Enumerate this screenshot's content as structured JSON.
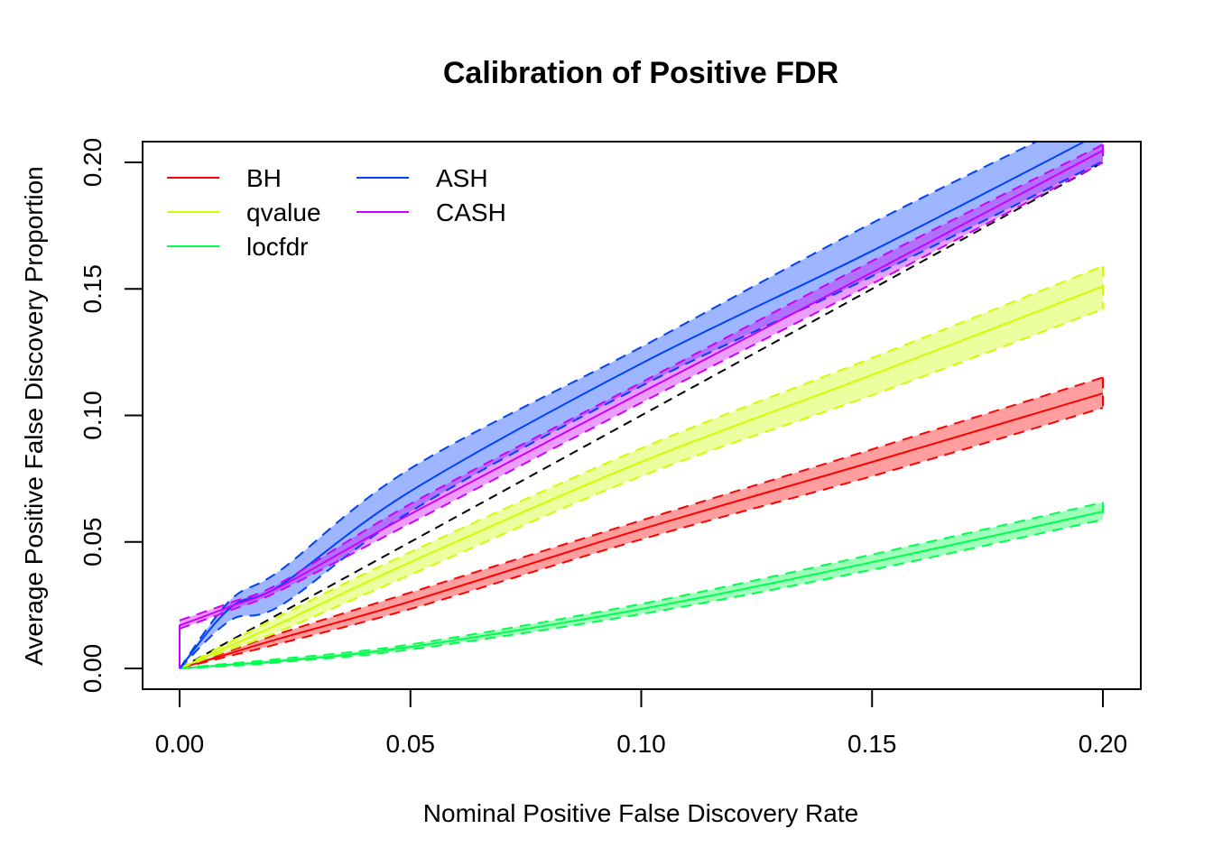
{
  "chart_data": {
    "type": "line",
    "title": "Calibration of Positive FDR",
    "xlabel": "Nominal Positive False Discovery Rate",
    "ylabel": "Average Positive False Discovery Proportion",
    "xlim": [
      -0.008,
      0.208
    ],
    "ylim": [
      -0.008,
      0.208
    ],
    "xticks": [
      0.0,
      0.05,
      0.1,
      0.15,
      0.2
    ],
    "xtick_labels": [
      "0.00",
      "0.05",
      "0.10",
      "0.15",
      "0.20"
    ],
    "yticks": [
      0.0,
      0.05,
      0.1,
      0.15,
      0.2
    ],
    "ytick_labels": [
      "0.00",
      "0.05",
      "0.10",
      "0.15",
      "0.20"
    ],
    "grid": false,
    "legend": {
      "position": "top-left",
      "columns": 2
    },
    "reference_line": {
      "name": "y=x",
      "color": "#000000",
      "style": "dashed",
      "x": [
        0,
        0.2
      ],
      "y": [
        0,
        0.2
      ]
    },
    "x": [
      0,
      0.011,
      0.022,
      0.05,
      0.1,
      0.15,
      0.2
    ],
    "series": [
      {
        "name": "BH",
        "color": "#FF0000",
        "band_color": "#FF000066",
        "mean": [
          0,
          0.006,
          0.012,
          0.0265,
          0.055,
          0.0816,
          0.1087
        ],
        "upper": [
          0,
          0.007,
          0.014,
          0.03,
          0.0585,
          0.0866,
          0.115
        ],
        "lower": [
          0,
          0.005,
          0.01,
          0.0235,
          0.051,
          0.076,
          0.103
        ]
      },
      {
        "name": "qvalue",
        "color": "#CCFF00",
        "band_color": "#CCFF0066",
        "mean": [
          0,
          0.009,
          0.018,
          0.042,
          0.0816,
          0.116,
          0.151
        ],
        "upper": [
          0,
          0.0105,
          0.021,
          0.046,
          0.087,
          0.1227,
          0.159
        ],
        "lower": [
          0,
          0.0075,
          0.015,
          0.037,
          0.076,
          0.108,
          0.142
        ]
      },
      {
        "name": "locfdr",
        "color": "#00FF4D",
        "band_color": "#00FF4D66",
        "mean": [
          0,
          0.0015,
          0.003,
          0.0085,
          0.0235,
          0.042,
          0.062
        ],
        "upper": [
          0,
          0.002,
          0.0038,
          0.0095,
          0.0255,
          0.045,
          0.0656
        ],
        "lower": [
          0,
          0.001,
          0.0025,
          0.0075,
          0.0215,
          0.039,
          0.0588
        ]
      },
      {
        "name": "ASH",
        "color": "#0040FF",
        "band_color": "#0040FF66",
        "mean": [
          0,
          0.024,
          0.033,
          0.07,
          0.1205,
          0.165,
          0.212
        ],
        "upper": [
          0,
          0.027,
          0.039,
          0.079,
          0.127,
          0.176,
          0.221
        ],
        "lower": [
          0,
          0.019,
          0.025,
          0.062,
          0.1116,
          0.155,
          0.2005
        ]
      },
      {
        "name": "CASH",
        "color": "#CC00FF",
        "band_color": "#CC00FF66",
        "start_jump": 0.017,
        "mean": [
          0.017,
          0.0245,
          0.0325,
          0.061,
          0.109,
          0.1565,
          0.2047
        ],
        "upper": [
          0.019,
          0.026,
          0.034,
          0.065,
          0.113,
          0.161,
          0.207
        ],
        "lower": [
          0.0157,
          0.023,
          0.031,
          0.0574,
          0.105,
          0.152,
          0.2
        ]
      }
    ]
  }
}
